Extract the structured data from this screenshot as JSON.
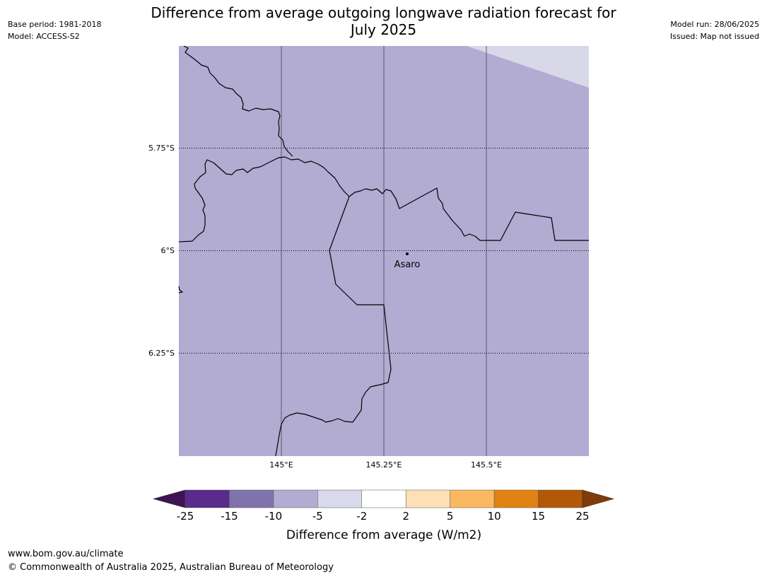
{
  "header": {
    "base_period": "Base period: 1981-2018",
    "model": "Model: ACCESS-S2",
    "model_run": "Model run: 28/06/2025",
    "issued": "Issued: Map not issued",
    "title_line1": "Difference from average outgoing longwave radiation forecast for",
    "title_line2": "July 2025"
  },
  "map": {
    "place_label": "Asaro",
    "lat_labels": [
      "5.75°S",
      "6°S",
      "6.25°S"
    ],
    "lon_labels": [
      "145°E",
      "145.25°E",
      "145.5°E"
    ],
    "fill_main": "#b2abd2",
    "fill_corner": "#d8d8e9"
  },
  "legend": {
    "title": "Difference from average (W/m2)",
    "ticks": [
      "-25",
      "-15",
      "-10",
      "-5",
      "-2",
      "2",
      "5",
      "10",
      "15",
      "25"
    ],
    "colors": [
      "#3f1253",
      "#5a2a8d",
      "#8073ac",
      "#b2abd2",
      "#d8daeb",
      "#ffffff",
      "#fee0b6",
      "#fbb863",
      "#e08214",
      "#b35806",
      "#7f3b08"
    ]
  },
  "footer": {
    "url": "www.bom.gov.au/climate",
    "copyright": "© Commonwealth of Australia 2025, Australian Bureau of Meteorology"
  }
}
